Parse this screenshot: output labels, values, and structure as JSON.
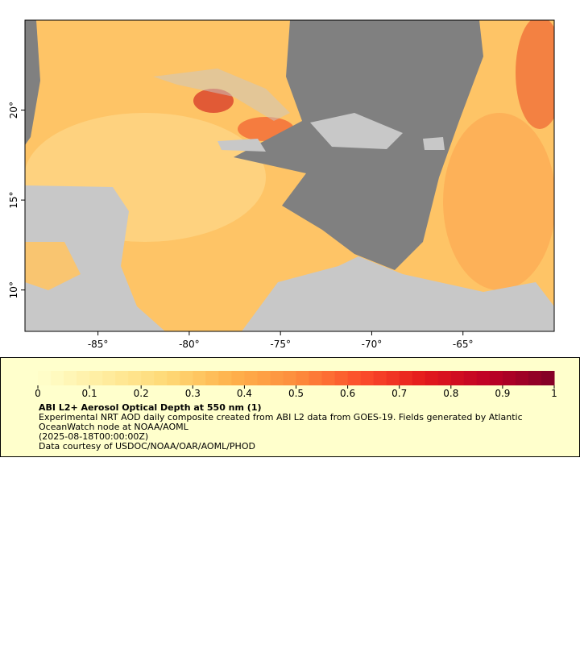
{
  "map": {
    "lonlim": [
      -89,
      -60
    ],
    "latlim": [
      7.7,
      25
    ],
    "lon_ticks": [
      {
        "value": -85,
        "label": "-85°"
      },
      {
        "value": -80,
        "label": "-80°"
      },
      {
        "value": -75,
        "label": "-75°"
      },
      {
        "value": -70,
        "label": "-70°"
      },
      {
        "value": -65,
        "label": "-65°"
      }
    ],
    "lat_ticks": [
      {
        "value": 10,
        "label": "10°"
      },
      {
        "value": 15,
        "label": "15°"
      },
      {
        "value": 20,
        "label": "20°"
      }
    ]
  },
  "colorbar": {
    "range": [
      0,
      1
    ],
    "ticks": [
      0,
      0.1,
      0.2,
      0.3,
      0.4,
      0.5,
      0.6,
      0.7,
      0.8,
      0.9,
      1
    ],
    "colors": [
      "#ffffcc",
      "#ffeda0",
      "#fed976",
      "#feb24c",
      "#fd8d3c",
      "#fc4e2a",
      "#e31a1c",
      "#bd0026",
      "#800026"
    ]
  },
  "legend": {
    "title": "ABI L2+ Aerosol Optical Depth at 550 nm (1)",
    "description": "Experimental NRT AOD daily composite created from ABI L2 data from GOES-19. Fields generated by Atlantic OceanWatch node at NOAA/AOML",
    "time": "(2025-08-18T00:00:00Z)",
    "credit": "Data courtesy of USDOC/NOAA/OAR/AOML/PHOD"
  }
}
